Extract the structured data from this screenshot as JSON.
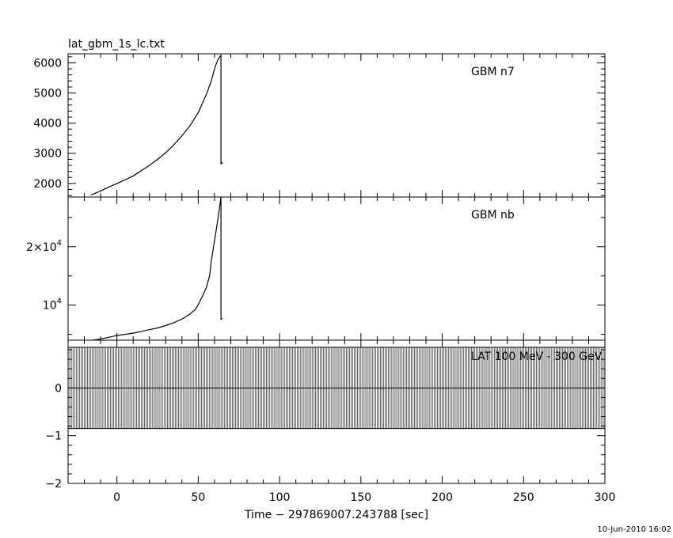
{
  "file_title": "lat_gbm_1s_lc.txt",
  "timestamp": "10-Jun-2010 16:02",
  "chart_data": [
    {
      "type": "line",
      "panel": "top",
      "annotation": "GBM n7",
      "ylim": [
        1550,
        6300
      ],
      "y_ticks": [
        2000,
        3000,
        4000,
        5000,
        6000
      ],
      "y_tick_labels": [
        "2000",
        "3000",
        "4000",
        "5000",
        "6000"
      ],
      "series": [
        {
          "x": [
            -16,
            -10,
            -5,
            0,
            5,
            10,
            15,
            20,
            25,
            30,
            35,
            40,
            45,
            50,
            55,
            58,
            60,
            62,
            64,
            64,
            65
          ],
          "values": [
            1620,
            1750,
            1880,
            2000,
            2120,
            2250,
            2420,
            2600,
            2800,
            3020,
            3280,
            3580,
            3920,
            4350,
            4950,
            5400,
            5800,
            6100,
            6250,
            2650,
            2700
          ]
        }
      ]
    },
    {
      "type": "line",
      "panel": "middle",
      "annotation": "GBM nb",
      "ylim": [
        4000,
        28500
      ],
      "y_ticks": [
        10000,
        20000
      ],
      "y_tick_labels": [
        {
          "base": "10",
          "exp": "4"
        },
        {
          "base": "2×10",
          "exp": "4"
        }
      ],
      "series": [
        {
          "x": [
            -15,
            -10,
            -5,
            0,
            5,
            10,
            15,
            20,
            25,
            30,
            35,
            40,
            45,
            48,
            50,
            52,
            55,
            57,
            58,
            60,
            62,
            63,
            64,
            64,
            65
          ],
          "values": [
            4000,
            4200,
            4500,
            4800,
            5000,
            5200,
            5500,
            5800,
            6100,
            6500,
            7000,
            7600,
            8500,
            9200,
            10100,
            11200,
            13000,
            15000,
            17500,
            21000,
            24500,
            26500,
            28500,
            7600,
            7700
          ]
        }
      ]
    },
    {
      "type": "bar",
      "panel": "bottom",
      "annotation": "LAT 100 MeV - 300 GeV",
      "ylim": [
        -2,
        1
      ],
      "y_ticks": [
        -2,
        -1,
        0
      ],
      "y_tick_labels": [
        "−2",
        "−1",
        "0"
      ],
      "xlim": [
        -30,
        300
      ],
      "x_ticks": [
        0,
        50,
        100,
        150,
        200,
        250,
        300
      ],
      "x_tick_labels": [
        "0",
        "50",
        "100",
        "150",
        "200",
        "250",
        "300"
      ],
      "xlabel": "Time − 297869007.243788 [sec]",
      "bar_range": [
        -0.85,
        0.85
      ],
      "bar_spacing": 1
    }
  ]
}
